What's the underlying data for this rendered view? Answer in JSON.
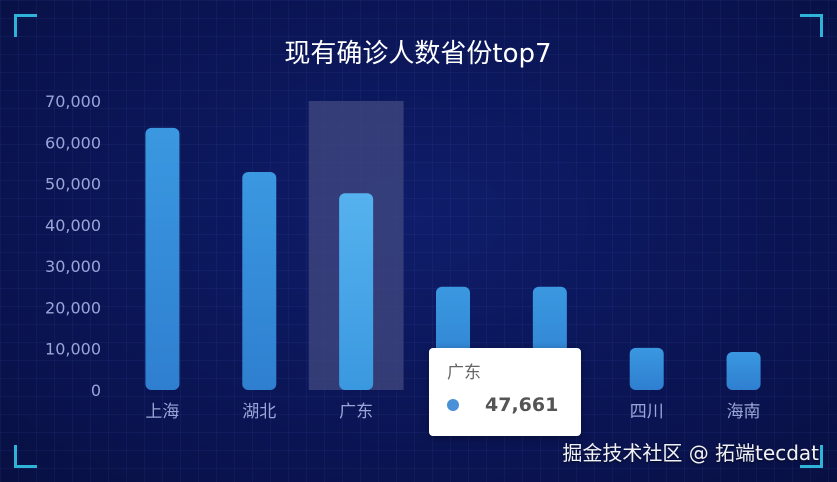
{
  "chart_data": {
    "type": "bar",
    "title": "现有确诊人数省份top7",
    "categories": [
      "上海",
      "湖北",
      "广东",
      "",
      "",
      "四川",
      "海南"
    ],
    "values": [
      63500,
      52800,
      47661,
      25000,
      25000,
      10200,
      9200
    ],
    "ylim": [
      0,
      70000
    ],
    "yticks": [
      0,
      10000,
      20000,
      30000,
      40000,
      50000,
      60000,
      70000
    ],
    "ytick_labels": [
      "0",
      "10,000",
      "20,000",
      "30,000",
      "40,000",
      "50,000",
      "60,000",
      "70,000"
    ],
    "highlighted_category": "广东",
    "tooltip": {
      "title": "广东",
      "value": "47,661"
    },
    "colors": {
      "bar_top": "#3a98e0",
      "bar_bottom": "#2f7fd0",
      "bar_highlight_top": "#56b2ee",
      "highlight_band": "#414a80",
      "tooltip_dot": "#4a90d6",
      "axis_text": "#9aa6d8",
      "title_text": "#ffffff",
      "corner": "#2fb4d8"
    },
    "grid": false
  },
  "watermark": "掘金技术社区 @ 拓端tecdat"
}
